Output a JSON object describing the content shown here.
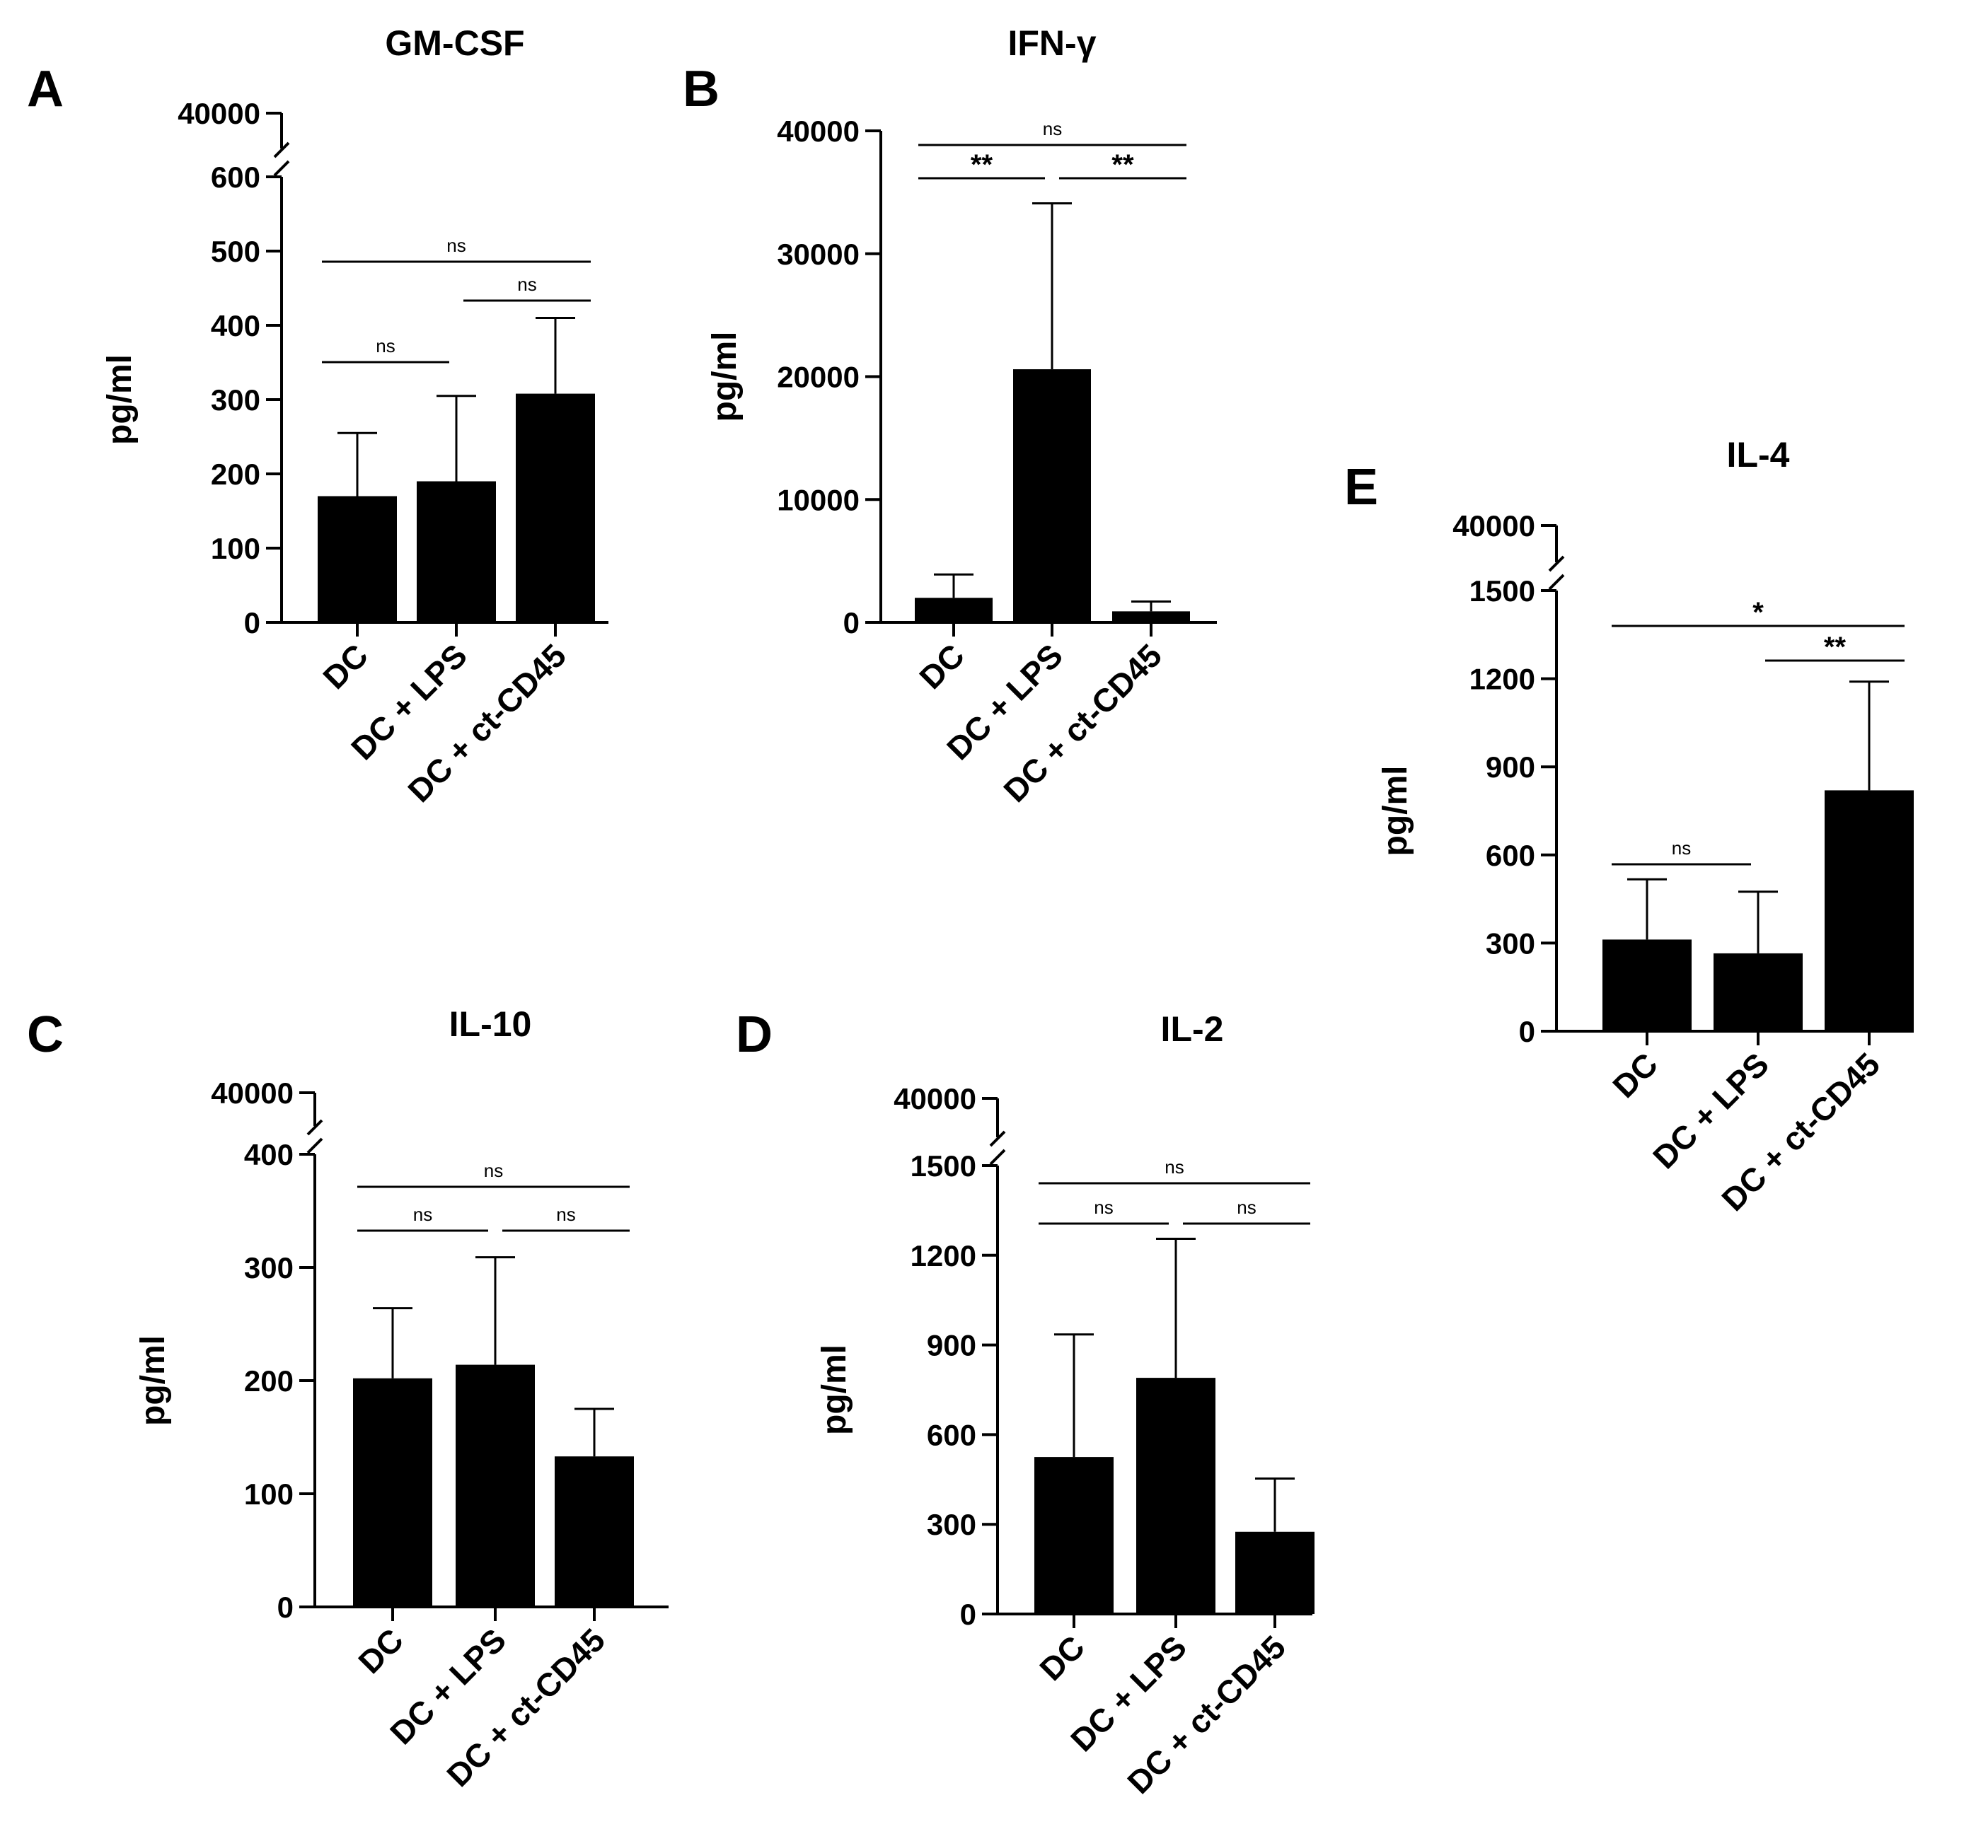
{
  "chart_data": [
    {
      "panel": "A",
      "title": "GM-CSF",
      "type": "bar",
      "ylabel": "pg/ml",
      "categories": [
        "DC",
        "DC + LPS",
        "DC + ct-CD45"
      ],
      "values": [
        170,
        190,
        308
      ],
      "errors": [
        85,
        115,
        102
      ],
      "ylim": [
        0,
        600
      ],
      "yticks": [
        0,
        100,
        200,
        300,
        400,
        500,
        600
      ],
      "tick_labels": [
        "0",
        "100",
        "200",
        "300",
        "400",
        "500",
        "600"
      ],
      "axis_break": true,
      "break_label": "40000",
      "comparisons": [
        {
          "from": 0,
          "to": 1,
          "label": "ns"
        },
        {
          "from": 1,
          "to": 2,
          "label": "ns"
        },
        {
          "from": 0,
          "to": 2,
          "label": "ns"
        }
      ]
    },
    {
      "panel": "B",
      "title": "IFN-γ",
      "type": "bar",
      "ylabel": "pg/ml",
      "categories": [
        "DC",
        "DC + LPS",
        "DC + ct-CD45"
      ],
      "values": [
        2000,
        20600,
        900
      ],
      "errors": [
        1900,
        13500,
        800
      ],
      "ylim": [
        0,
        40000
      ],
      "yticks": [
        0,
        10000,
        20000,
        30000,
        40000
      ],
      "tick_labels": [
        "0",
        "10000",
        "20000",
        "30000",
        "40000"
      ],
      "axis_break": false,
      "comparisons": [
        {
          "from": 0,
          "to": 1,
          "label": "**"
        },
        {
          "from": 1,
          "to": 2,
          "label": "**"
        },
        {
          "from": 0,
          "to": 2,
          "label": "ns"
        }
      ]
    },
    {
      "panel": "C",
      "title": "IL-10",
      "type": "bar",
      "ylabel": "pg/ml",
      "categories": [
        "DC",
        "DC + LPS",
        "DC + ct-CD45"
      ],
      "values": [
        202,
        214,
        133
      ],
      "errors": [
        62,
        95,
        42
      ],
      "ylim": [
        0,
        400
      ],
      "yticks": [
        0,
        100,
        200,
        300,
        400
      ],
      "tick_labels": [
        "0",
        "100",
        "200",
        "300",
        "400"
      ],
      "axis_break": true,
      "break_label": "40000",
      "comparisons": [
        {
          "from": 0,
          "to": 1,
          "label": "ns"
        },
        {
          "from": 1,
          "to": 2,
          "label": "ns"
        },
        {
          "from": 0,
          "to": 2,
          "label": "ns"
        }
      ]
    },
    {
      "panel": "D",
      "title": "IL-2",
      "type": "bar",
      "ylabel": "pg/ml",
      "categories": [
        "DC",
        "DC + LPS",
        "DC + ct-CD45"
      ],
      "values": [
        525,
        790,
        275
      ],
      "errors": [
        410,
        465,
        178
      ],
      "ylim": [
        0,
        1500
      ],
      "yticks": [
        0,
        300,
        600,
        900,
        1200,
        1500
      ],
      "tick_labels": [
        "0",
        "300",
        "600",
        "900",
        "1200",
        "1500"
      ],
      "axis_break": true,
      "break_label": "40000",
      "comparisons": [
        {
          "from": 0,
          "to": 1,
          "label": "ns"
        },
        {
          "from": 1,
          "to": 2,
          "label": "ns"
        },
        {
          "from": 0,
          "to": 2,
          "label": "ns"
        }
      ]
    },
    {
      "panel": "E",
      "title": "IL-4",
      "type": "bar",
      "ylabel": "pg/ml",
      "categories": [
        "DC",
        "DC + LPS",
        "DC + ct-CD45"
      ],
      "values": [
        312,
        265,
        820
      ],
      "errors": [
        205,
        210,
        370
      ],
      "ylim": [
        0,
        1500
      ],
      "yticks": [
        0,
        300,
        600,
        900,
        1200,
        1500
      ],
      "tick_labels": [
        "0",
        "300",
        "600",
        "900",
        "1200",
        "1500"
      ],
      "axis_break": true,
      "break_label": "40000",
      "comparisons": [
        {
          "from": 0,
          "to": 1,
          "label": "ns"
        },
        {
          "from": 1,
          "to": 2,
          "label": "**"
        },
        {
          "from": 0,
          "to": 2,
          "label": "*"
        }
      ]
    }
  ]
}
